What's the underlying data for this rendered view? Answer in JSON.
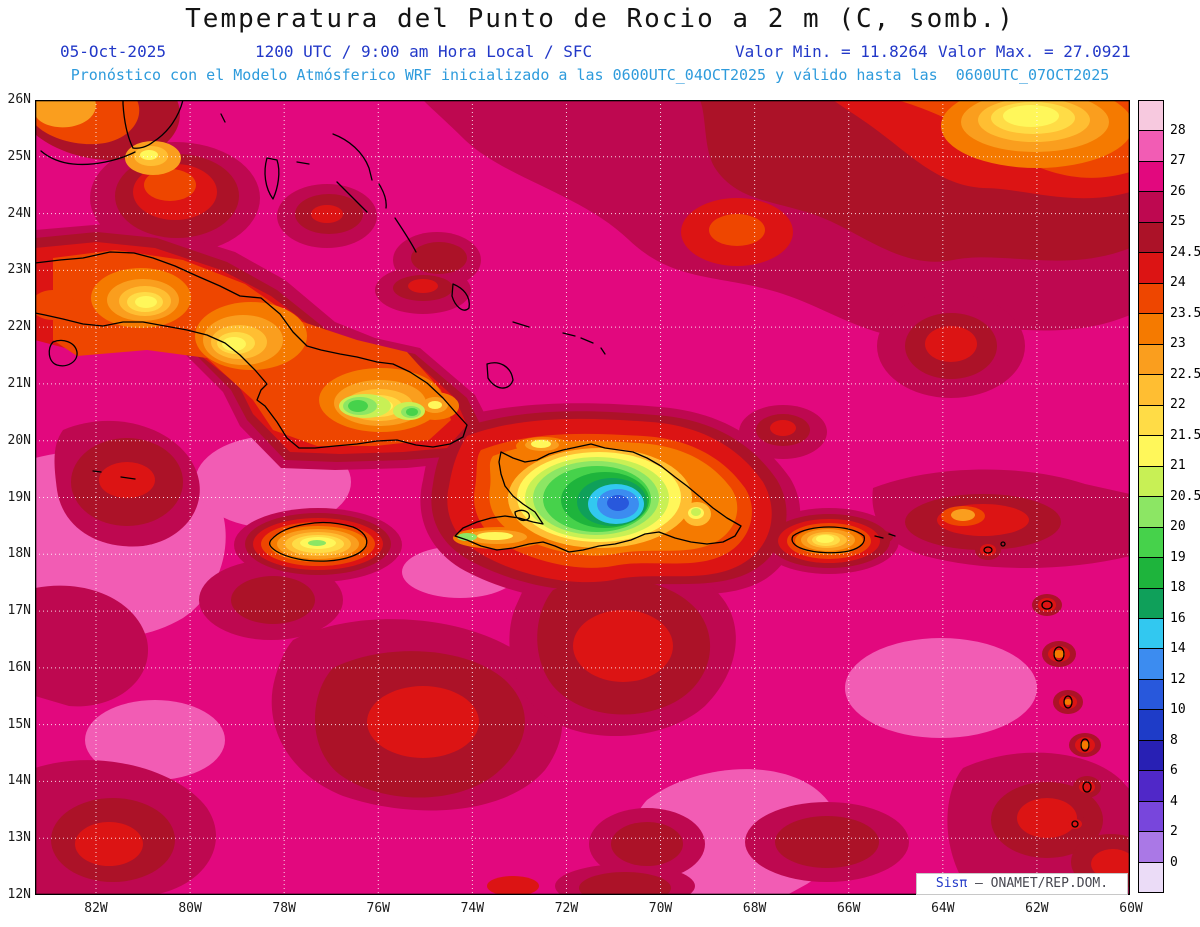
{
  "title": "Temperatura del Punto de Rocio a 2 m (C, somb.)",
  "header": {
    "date": "05-Oct-2025",
    "time_info": "1200 UTC / 9:00 am Hora Local / SFC",
    "valor_min": "Valor Min. = 11.8264",
    "valor_max": "Valor Max. = 27.0921",
    "model_line": "Pronóstico con el Modelo Atmósferico WRF inicializado a las 0600UTC_04OCT2025 y válido hasta las  0600UTC_07OCT2025"
  },
  "map": {
    "lat_labels": [
      "26N",
      "25N",
      "24N",
      "23N",
      "22N",
      "21N",
      "20N",
      "19N",
      "18N",
      "17N",
      "16N",
      "15N",
      "14N",
      "13N",
      "12N"
    ],
    "lon_labels": [
      "82W",
      "80W",
      "78W",
      "76W",
      "74W",
      "72W",
      "70W",
      "68W",
      "66W",
      "64W",
      "62W",
      "60W"
    ],
    "grid_color": "#FFFFFF",
    "coast_color": "#000000"
  },
  "colorbar": {
    "labels": [
      "28",
      "27",
      "26",
      "25",
      "24.5",
      "24",
      "23.5",
      "23",
      "22.5",
      "22",
      "21.5",
      "21",
      "20.5",
      "20",
      "19",
      "18",
      "16",
      "14",
      "12",
      "10",
      "8",
      "6",
      "4",
      "2",
      "0"
    ],
    "colors": [
      "#F7C9DF",
      "#F25CB4",
      "#E2087E",
      "#BE0850",
      "#AC1228",
      "#DC1414",
      "#EE4600",
      "#F57A00",
      "#FA9E1E",
      "#FFBE32",
      "#FFDC46",
      "#FFF75A",
      "#C8F055",
      "#8CE664",
      "#46D24B",
      "#1EB43C",
      "#0FA05A",
      "#32C8F0",
      "#3C8CF0",
      "#2858DC",
      "#1E3CC8",
      "#2820B4",
      "#5028C8",
      "#7846DC",
      "#AA78E6",
      "#EBDCF7"
    ]
  },
  "branding": {
    "sis": "Sis",
    "pi": "π",
    "rest": " – ONAMET/REP.DOM.",
    "sis_color": "#2238C8",
    "rest_color": "#46464F"
  },
  "theme": {
    "title_color": "#141414",
    "header_blue": "#2238C8",
    "header_cyan": "#2E9BDC",
    "axis_color": "#1A1A1A",
    "label_color": "#000000"
  }
}
